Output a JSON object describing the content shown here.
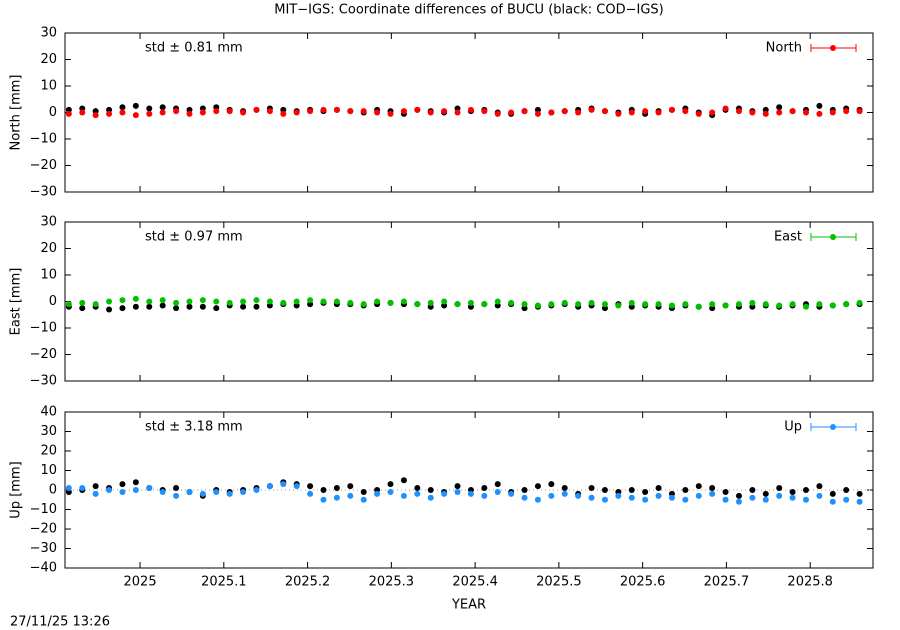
{
  "footer": {
    "timestamp": "27/11/25 13:26"
  },
  "chart_data": [
    {
      "type": "scatter",
      "title": "MIT−IGS: Coordinate differences of BUCU (black: COD−IGS)",
      "ylabel": "North [mm]",
      "annotation": "std ± 0.81 mm",
      "xlim": [
        2024.9104,
        2025.875
      ],
      "xticks": [
        2025,
        2025.1,
        2025.2,
        2025.3,
        2025.4,
        2025.5,
        2025.6,
        2025.7,
        2025.8
      ],
      "show_xtick_labels": false,
      "ylim": [
        -30,
        30
      ],
      "yticks": [
        {
          "value": -30,
          "label": "−30"
        },
        {
          "value": -20,
          "label": "−20"
        },
        {
          "value": -10,
          "label": "−10"
        },
        0,
        10,
        20,
        30
      ],
      "x": [
        2024.915,
        2024.931,
        2024.947,
        2024.963,
        2024.979,
        2024.995,
        2025.011,
        2025.027,
        2025.043,
        2025.059,
        2025.075,
        2025.091,
        2025.107,
        2025.123,
        2025.139,
        2025.155,
        2025.171,
        2025.187,
        2025.203,
        2025.219,
        2025.235,
        2025.251,
        2025.267,
        2025.283,
        2025.299,
        2025.315,
        2025.331,
        2025.347,
        2025.363,
        2025.379,
        2025.395,
        2025.411,
        2025.427,
        2025.443,
        2025.459,
        2025.475,
        2025.491,
        2025.507,
        2025.523,
        2025.539,
        2025.555,
        2025.571,
        2025.587,
        2025.603,
        2025.619,
        2025.635,
        2025.651,
        2025.667,
        2025.683,
        2025.699,
        2025.715,
        2025.731,
        2025.747,
        2025.763,
        2025.779,
        2025.795,
        2025.811,
        2025.827,
        2025.843,
        2025.859
      ],
      "series": [
        {
          "color": "#000000",
          "values": [
            1,
            1.5,
            0.5,
            1,
            2,
            2.5,
            1.5,
            2,
            1.5,
            1,
            1.5,
            2,
            1,
            0.5,
            1,
            1.5,
            1,
            0.5,
            1,
            0.5,
            1,
            0.5,
            0,
            1,
            0.5,
            -0.5,
            1,
            0.5,
            0,
            1.5,
            0.5,
            1,
            0,
            -0.5,
            0.5,
            1,
            0,
            0.5,
            1,
            1.5,
            0.5,
            0,
            1,
            -0.5,
            0.5,
            1,
            1.5,
            0,
            -1,
            1,
            1.5,
            0.5,
            1,
            2,
            0.5,
            1,
            2.5,
            1,
            1.5,
            1
          ]
        },
        {
          "name": "North",
          "color": "#ff0000",
          "values": [
            -0.5,
            0,
            -1,
            -0.5,
            0,
            -1,
            -0.5,
            0,
            0.5,
            -0.5,
            0,
            0.5,
            0.5,
            0,
            1,
            0.5,
            -0.5,
            0,
            0.5,
            1,
            1,
            0.5,
            0.5,
            0,
            -0.5,
            0.5,
            1,
            0,
            0.5,
            0,
            1,
            0.5,
            -0.5,
            0,
            0.5,
            -0.5,
            0,
            0.5,
            0,
            1,
            0.5,
            -0.5,
            0,
            0.5,
            0,
            1,
            0.5,
            -0.5,
            0,
            1.5,
            0.5,
            0,
            -0.5,
            0,
            0.5,
            0,
            -0.5,
            0,
            0.5,
            0.5
          ]
        }
      ]
    },
    {
      "type": "scatter",
      "ylabel": "East [mm]",
      "annotation": "std ± 0.97 mm",
      "xlim": [
        2024.9104,
        2025.875
      ],
      "xticks": [
        2025,
        2025.1,
        2025.2,
        2025.3,
        2025.4,
        2025.5,
        2025.6,
        2025.7,
        2025.8
      ],
      "show_xtick_labels": false,
      "ylim": [
        -30,
        30
      ],
      "yticks": [
        {
          "value": -30,
          "label": "−30"
        },
        {
          "value": -20,
          "label": "−20"
        },
        {
          "value": -10,
          "label": "−10"
        },
        0,
        10,
        20,
        30
      ],
      "x": [
        2024.915,
        2024.931,
        2024.947,
        2024.963,
        2024.979,
        2024.995,
        2025.011,
        2025.027,
        2025.043,
        2025.059,
        2025.075,
        2025.091,
        2025.107,
        2025.123,
        2025.139,
        2025.155,
        2025.171,
        2025.187,
        2025.203,
        2025.219,
        2025.235,
        2025.251,
        2025.267,
        2025.283,
        2025.299,
        2025.315,
        2025.331,
        2025.347,
        2025.363,
        2025.379,
        2025.395,
        2025.411,
        2025.427,
        2025.443,
        2025.459,
        2025.475,
        2025.491,
        2025.507,
        2025.523,
        2025.539,
        2025.555,
        2025.571,
        2025.587,
        2025.603,
        2025.619,
        2025.635,
        2025.651,
        2025.667,
        2025.683,
        2025.699,
        2025.715,
        2025.731,
        2025.747,
        2025.763,
        2025.779,
        2025.795,
        2025.811,
        2025.827,
        2025.843,
        2025.859
      ],
      "series": [
        {
          "color": "#000000",
          "values": [
            -2,
            -2.5,
            -2,
            -3,
            -2.5,
            -2,
            -2,
            -1.5,
            -2.5,
            -2,
            -2,
            -2.5,
            -1.5,
            -2,
            -2,
            -1.5,
            -1,
            -1.5,
            -1,
            -0.5,
            -1,
            -1,
            -1.5,
            -1,
            -0.5,
            -1,
            -1,
            -2,
            -1.5,
            -1,
            -2,
            -1,
            -1.5,
            -1,
            -2.5,
            -2,
            -1.5,
            -1,
            -2,
            -1.5,
            -2.5,
            -1,
            -2,
            -1.5,
            -2,
            -2.5,
            -1.5,
            -2,
            -2.5,
            -1.5,
            -2,
            -2,
            -1.5,
            -2,
            -1.5,
            -1,
            -2,
            -1.5,
            -1,
            -1
          ]
        },
        {
          "name": "East",
          "color": "#00c000",
          "values": [
            -1,
            -0.5,
            -1,
            0,
            0.5,
            1,
            0,
            0.5,
            -0.5,
            0,
            0.5,
            0,
            -0.5,
            0,
            0.5,
            0,
            -0.5,
            0,
            0.5,
            0,
            0,
            -0.5,
            -1,
            0,
            -0.5,
            0,
            -1,
            -0.5,
            0,
            -1,
            -0.5,
            -1,
            0,
            -0.5,
            -1,
            -1.5,
            -1,
            -0.5,
            -1,
            -0.5,
            -1,
            -1.5,
            -0.5,
            -1,
            -1,
            -1.5,
            -1,
            -2,
            -1,
            -1.5,
            -1,
            -0.5,
            -1,
            -1.5,
            -1,
            -2,
            -1,
            -1.5,
            -1,
            -0.5
          ]
        }
      ]
    },
    {
      "type": "scatter",
      "ylabel": "Up [mm]",
      "xlabel": "YEAR",
      "annotation": "std ± 3.18 mm",
      "zero_line": true,
      "xlim": [
        2024.9104,
        2025.875
      ],
      "xticks": [
        2025,
        2025.1,
        2025.2,
        2025.3,
        2025.4,
        2025.5,
        2025.6,
        2025.7,
        2025.8
      ],
      "ylim": [
        -40,
        40
      ],
      "yticks": [
        {
          "value": -40,
          "label": "−40"
        },
        {
          "value": -30,
          "label": "−30"
        },
        {
          "value": -20,
          "label": "−20"
        },
        {
          "value": -10,
          "label": "−10"
        },
        0,
        10,
        20,
        30,
        40
      ],
      "x": [
        2024.915,
        2024.931,
        2024.947,
        2024.963,
        2024.979,
        2024.995,
        2025.011,
        2025.027,
        2025.043,
        2025.059,
        2025.075,
        2025.091,
        2025.107,
        2025.123,
        2025.139,
        2025.155,
        2025.171,
        2025.187,
        2025.203,
        2025.219,
        2025.235,
        2025.251,
        2025.267,
        2025.283,
        2025.299,
        2025.315,
        2025.331,
        2025.347,
        2025.363,
        2025.379,
        2025.395,
        2025.411,
        2025.427,
        2025.443,
        2025.459,
        2025.475,
        2025.491,
        2025.507,
        2025.523,
        2025.539,
        2025.555,
        2025.571,
        2025.587,
        2025.603,
        2025.619,
        2025.635,
        2025.651,
        2025.667,
        2025.683,
        2025.699,
        2025.715,
        2025.731,
        2025.747,
        2025.763,
        2025.779,
        2025.795,
        2025.811,
        2025.827,
        2025.843,
        2025.859
      ],
      "series": [
        {
          "color": "#000000",
          "values": [
            -1,
            0,
            2,
            1,
            3,
            4,
            1,
            0,
            1,
            -1,
            -3,
            0,
            -1,
            0,
            1,
            2,
            4,
            3,
            2,
            0,
            1,
            2,
            -1,
            0,
            3,
            5,
            1,
            0,
            -1,
            2,
            0,
            1,
            3,
            -1,
            0,
            2,
            3,
            1,
            -2,
            1,
            0,
            -1,
            0,
            -1,
            1,
            -2,
            0,
            2,
            1,
            -1,
            -3,
            0,
            -2,
            1,
            -1,
            0,
            2,
            -2,
            0,
            -2
          ]
        },
        {
          "name": "Up",
          "color": "#1e90ff",
          "values": [
            1,
            1,
            -2,
            0,
            -1,
            0,
            1,
            -1,
            -3,
            -1,
            -2,
            -1,
            -2,
            -1,
            0,
            2,
            3,
            2,
            -2,
            -5,
            -4,
            -3,
            -5,
            -2,
            -1,
            -3,
            -2,
            -4,
            -2,
            -1,
            -2,
            -3,
            -1,
            -2,
            -4,
            -5,
            -3,
            -2,
            -3,
            -4,
            -5,
            -3,
            -4,
            -5,
            -3,
            -4,
            -5,
            -3,
            -2,
            -5,
            -6,
            -4,
            -5,
            -3,
            -4,
            -5,
            -3,
            -6,
            -5,
            -6
          ]
        }
      ]
    }
  ]
}
